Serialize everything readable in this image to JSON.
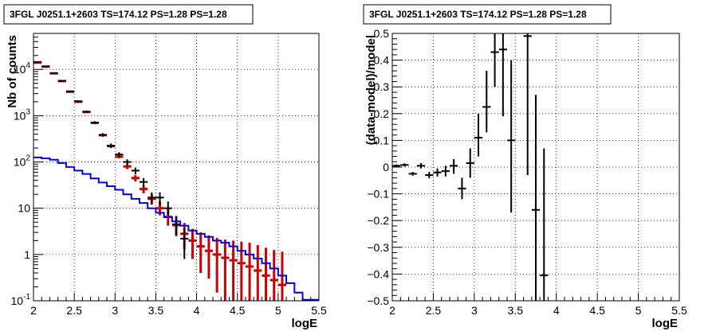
{
  "chart_data": [
    {
      "type": "scatter",
      "title": "3FGL J0251.1+2603 TS=174.12 PS=1.28 PS=1.28",
      "xlabel": "logE",
      "ylabel": "Nb of counts",
      "xscale": "linear",
      "yscale": "log",
      "xlim": [
        2,
        5.5
      ],
      "ylim": [
        0.1,
        60000
      ],
      "grid": true,
      "x_ticks": [
        "2",
        "2.5",
        "3",
        "3.5",
        "4",
        "4.5",
        "5",
        "5.5"
      ],
      "y_ticks": [
        "10^4",
        "10^3",
        "10^2",
        "10",
        "1",
        "10^-1"
      ],
      "colors": {
        "data": "#000000",
        "model_counts": "#cc0000",
        "model_line": "#0000ee"
      },
      "series": [
        {
          "kind": "model_counts_red",
          "points": [
            {
              "x": 2.05,
              "y": 14000,
              "lo": 14000,
              "hi": 14000
            },
            {
              "x": 2.15,
              "y": 11500,
              "lo": 11500,
              "hi": 11500
            },
            {
              "x": 2.25,
              "y": 8200,
              "lo": 8200,
              "hi": 8200
            },
            {
              "x": 2.35,
              "y": 5600,
              "lo": 5600,
              "hi": 5600
            },
            {
              "x": 2.45,
              "y": 3300,
              "lo": 3300,
              "hi": 3300
            },
            {
              "x": 2.55,
              "y": 2000,
              "lo": 2000,
              "hi": 2000
            },
            {
              "x": 2.65,
              "y": 1200,
              "lo": 1200,
              "hi": 1200
            },
            {
              "x": 2.75,
              "y": 700,
              "lo": 700,
              "hi": 700
            },
            {
              "x": 2.85,
              "y": 380,
              "lo": 380,
              "hi": 380
            },
            {
              "x": 2.95,
              "y": 220,
              "lo": 220,
              "hi": 220
            },
            {
              "x": 3.05,
              "y": 130,
              "lo": 120,
              "hi": 140
            },
            {
              "x": 3.15,
              "y": 80,
              "lo": 70,
              "hi": 90
            },
            {
              "x": 3.25,
              "y": 45,
              "lo": 38,
              "hi": 52
            },
            {
              "x": 3.35,
              "y": 26,
              "lo": 21,
              "hi": 31
            },
            {
              "x": 3.45,
              "y": 16,
              "lo": 12,
              "hi": 20
            },
            {
              "x": 3.55,
              "y": 10,
              "lo": 7,
              "hi": 14
            },
            {
              "x": 3.65,
              "y": 6.5,
              "lo": 4.2,
              "hi": 9.5
            },
            {
              "x": 3.75,
              "y": 4.3,
              "lo": 2.5,
              "hi": 6.8
            },
            {
              "x": 3.85,
              "y": 2.8,
              "lo": 1.3,
              "hi": 4.8
            },
            {
              "x": 3.95,
              "y": 2.0,
              "lo": 0.8,
              "hi": 3.6
            },
            {
              "x": 4.05,
              "y": 1.5,
              "lo": 0.4,
              "hi": 3.0
            },
            {
              "x": 4.15,
              "y": 1.2,
              "lo": 0.3,
              "hi": 2.6
            },
            {
              "x": 4.25,
              "y": 1.0,
              "lo": 0.15,
              "hi": 2.3
            },
            {
              "x": 4.35,
              "y": 0.85,
              "lo": 0.1,
              "hi": 2.1
            },
            {
              "x": 4.45,
              "y": 0.75,
              "lo": 0.1,
              "hi": 2.0
            },
            {
              "x": 4.55,
              "y": 0.65,
              "lo": 0.1,
              "hi": 1.9
            },
            {
              "x": 4.65,
              "y": 0.55,
              "lo": 0.1,
              "hi": 1.8
            },
            {
              "x": 4.75,
              "y": 0.45,
              "lo": 0.1,
              "hi": 1.6
            },
            {
              "x": 4.85,
              "y": 0.35,
              "lo": 0.1,
              "hi": 1.4
            },
            {
              "x": 4.95,
              "y": 0.28,
              "lo": 0.1,
              "hi": 1.25
            },
            {
              "x": 5.05,
              "y": 0.22,
              "lo": 0.1,
              "hi": 1.15
            }
          ]
        },
        {
          "kind": "data_black",
          "points": [
            {
              "x": 2.05,
              "y": 14500,
              "lo": 14000,
              "hi": 15000
            },
            {
              "x": 2.15,
              "y": 11600,
              "lo": 11200,
              "hi": 12000
            },
            {
              "x": 2.25,
              "y": 8300,
              "lo": 8000,
              "hi": 8600
            },
            {
              "x": 2.35,
              "y": 5650,
              "lo": 5450,
              "hi": 5850
            },
            {
              "x": 2.45,
              "y": 3350,
              "lo": 3200,
              "hi": 3500
            },
            {
              "x": 2.55,
              "y": 2050,
              "lo": 1950,
              "hi": 2150
            },
            {
              "x": 2.65,
              "y": 1220,
              "lo": 1150,
              "hi": 1290
            },
            {
              "x": 2.75,
              "y": 710,
              "lo": 660,
              "hi": 760
            },
            {
              "x": 2.85,
              "y": 385,
              "lo": 350,
              "hi": 420
            },
            {
              "x": 2.95,
              "y": 225,
              "lo": 200,
              "hi": 250
            },
            {
              "x": 3.05,
              "y": 145,
              "lo": 128,
              "hi": 162
            },
            {
              "x": 3.15,
              "y": 100,
              "lo": 86,
              "hi": 114
            },
            {
              "x": 3.25,
              "y": 65,
              "lo": 54,
              "hi": 76
            },
            {
              "x": 3.35,
              "y": 37,
              "lo": 29,
              "hi": 45
            },
            {
              "x": 3.45,
              "y": 17,
              "lo": 12,
              "hi": 22
            },
            {
              "x": 3.55,
              "y": 17,
              "lo": 12,
              "hi": 22
            },
            {
              "x": 3.65,
              "y": 10,
              "lo": 7,
              "hi": 14
            },
            {
              "x": 3.75,
              "y": 4.5,
              "lo": 2.6,
              "hi": 6.7
            },
            {
              "x": 3.85,
              "y": 2.2,
              "lo": 0.8,
              "hi": 3.7
            }
          ]
        },
        {
          "kind": "model_step_blue",
          "edges": [
            2.0,
            2.1,
            2.2,
            2.3,
            2.4,
            2.5,
            2.6,
            2.7,
            2.8,
            2.9,
            3.0,
            3.1,
            3.2,
            3.3,
            3.4,
            3.5,
            3.6,
            3.7,
            3.8,
            3.9,
            4.0,
            4.1,
            4.2,
            4.3,
            4.4,
            4.5,
            4.6,
            4.7,
            4.8,
            4.9,
            5.0,
            5.1,
            5.2,
            5.3,
            5.4,
            5.5
          ],
          "values": [
            125,
            120,
            112,
            95,
            78,
            65,
            55,
            44,
            36,
            30,
            25,
            20,
            16,
            13,
            10,
            8,
            6.4,
            5.2,
            4.2,
            3.3,
            2.8,
            2.4,
            2.0,
            1.8,
            1.5,
            1.2,
            1.0,
            0.82,
            0.65,
            0.5,
            0.35,
            0.24,
            0.15,
            0.105,
            0.105
          ]
        }
      ]
    },
    {
      "type": "scatter",
      "title": "3FGL J0251.1+2603 TS=174.12 PS=1.28 PS=1.28",
      "xlabel": "logE",
      "ylabel": "(data-model)/model",
      "xscale": "linear",
      "yscale": "linear",
      "xlim": [
        2,
        5.5
      ],
      "ylim": [
        -0.5,
        0.5
      ],
      "grid": true,
      "x_ticks": [
        "2",
        "2.5",
        "3",
        "3.5",
        "4",
        "4.5",
        "5",
        "5.5"
      ],
      "y_ticks": [
        "0.5",
        "0.4",
        "0.3",
        "0.2",
        "0.1",
        "0",
        "−0.1",
        "−0.2",
        "−0.3",
        "−0.4",
        "−0.5"
      ],
      "colors": {
        "data": "#000000"
      },
      "series": [
        {
          "kind": "residuals_black",
          "points": [
            {
              "x": 2.05,
              "y": 0.005,
              "lo": 0.0,
              "hi": 0.01
            },
            {
              "x": 2.15,
              "y": 0.008,
              "lo": 0.002,
              "hi": 0.014
            },
            {
              "x": 2.25,
              "y": -0.025,
              "lo": -0.032,
              "hi": -0.018
            },
            {
              "x": 2.35,
              "y": 0.005,
              "lo": -0.005,
              "hi": 0.015
            },
            {
              "x": 2.45,
              "y": -0.03,
              "lo": -0.042,
              "hi": -0.018
            },
            {
              "x": 2.55,
              "y": -0.02,
              "lo": -0.035,
              "hi": -0.005
            },
            {
              "x": 2.65,
              "y": -0.015,
              "lo": -0.035,
              "hi": 0.005
            },
            {
              "x": 2.75,
              "y": 0.005,
              "lo": -0.025,
              "hi": 0.03
            },
            {
              "x": 2.85,
              "y": -0.08,
              "lo": -0.12,
              "hi": -0.04
            },
            {
              "x": 2.95,
              "y": 0.015,
              "lo": -0.04,
              "hi": 0.07
            },
            {
              "x": 3.05,
              "y": 0.11,
              "lo": 0.04,
              "hi": 0.2
            },
            {
              "x": 3.15,
              "y": 0.225,
              "lo": 0.13,
              "hi": 0.36
            },
            {
              "x": 3.25,
              "y": 0.43,
              "lo": 0.3,
              "hi": 0.56
            },
            {
              "x": 3.35,
              "y": 0.44,
              "lo": 0.19,
              "hi": 0.6
            },
            {
              "x": 3.45,
              "y": 0.1,
              "lo": -0.17,
              "hi": 0.4
            },
            {
              "x": 3.65,
              "y": 0.49,
              "lo": -0.03,
              "hi": 0.6
            },
            {
              "x": 3.75,
              "y": -0.16,
              "lo": -0.6,
              "hi": 0.27
            },
            {
              "x": 3.85,
              "y": -0.405,
              "lo": -0.6,
              "hi": 0.07
            }
          ]
        }
      ]
    }
  ]
}
